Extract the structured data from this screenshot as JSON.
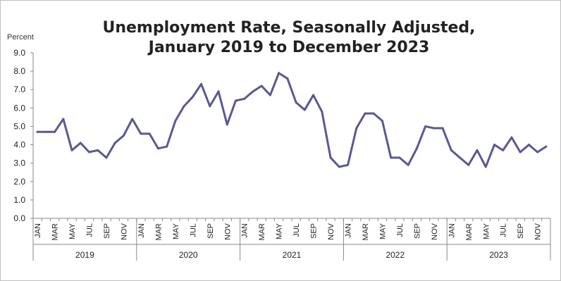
{
  "chart_data": {
    "type": "line",
    "title_line1": "Unemployment Rate, Seasonally Adjusted,",
    "title_line2": "January 2019 to December 2023",
    "ylabel": "Percent",
    "ylim": [
      0,
      9
    ],
    "yticks": [
      "0.0",
      "1.0",
      "2.0",
      "3.0",
      "4.0",
      "5.0",
      "6.0",
      "7.0",
      "8.0",
      "9.0"
    ],
    "month_labels": [
      "JAN",
      "MAR",
      "MAY",
      "JUL",
      "SEP",
      "NOV"
    ],
    "years": [
      "2019",
      "2020",
      "2021",
      "2022",
      "2023"
    ],
    "grid": false,
    "line_color": "#5b5894",
    "series": [
      {
        "values": [
          4.7,
          4.7,
          4.7,
          5.4,
          3.7,
          4.1,
          3.6,
          3.7,
          3.3,
          4.1,
          4.5,
          5.4,
          4.6,
          4.6,
          3.8,
          3.9,
          5.3,
          6.1,
          6.6,
          7.3,
          6.1,
          6.9,
          5.1,
          6.4,
          6.5,
          6.9,
          7.2,
          6.7,
          7.9,
          7.6,
          6.3,
          5.9,
          6.7,
          5.8,
          3.3,
          2.8,
          2.9,
          4.9,
          5.7,
          5.7,
          5.3,
          3.3,
          3.3,
          2.9,
          3.8,
          5.0,
          4.9,
          4.9,
          3.7,
          3.3,
          2.9,
          3.7,
          2.8,
          4.0,
          3.7,
          4.4,
          3.6,
          4.0,
          3.6,
          3.9
        ]
      }
    ]
  }
}
